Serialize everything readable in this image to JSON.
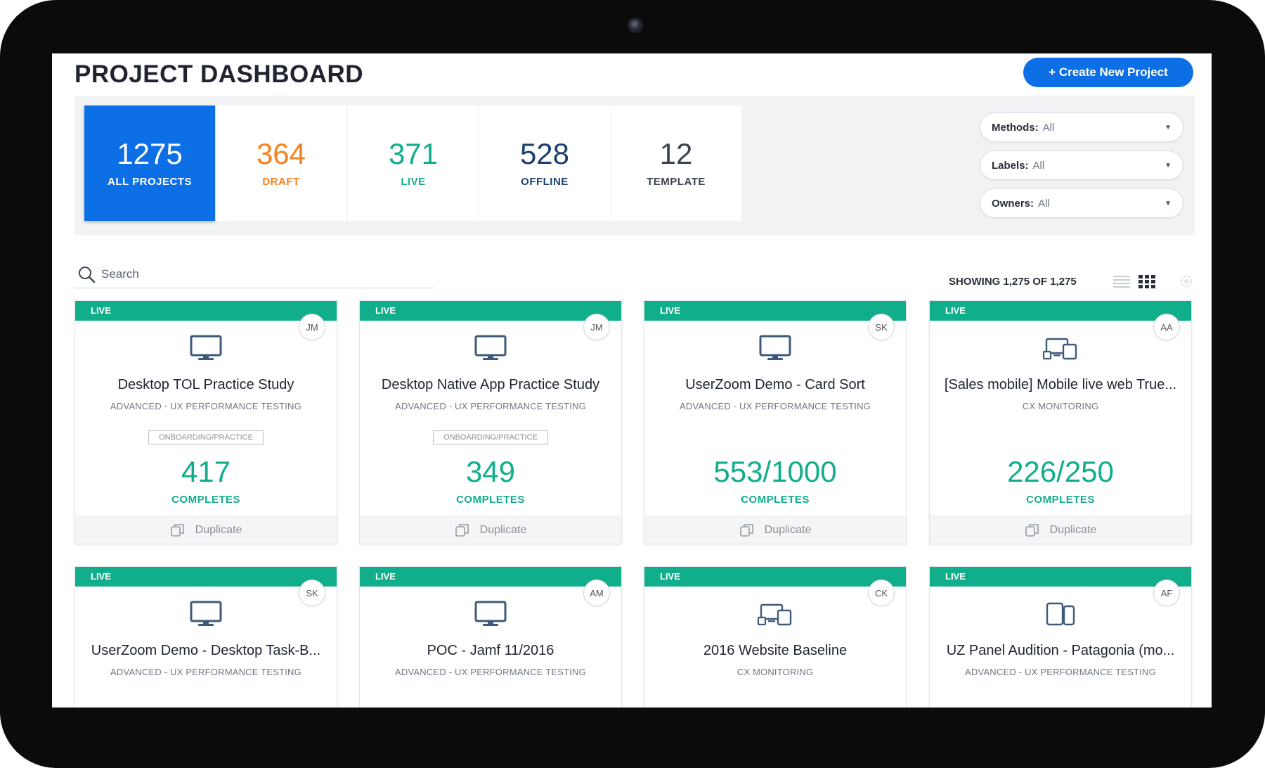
{
  "header": {
    "title": "PROJECT DASHBOARD",
    "create_button": "+ Create New Project"
  },
  "stats": [
    {
      "value": "1275",
      "label": "ALL PROJECTS",
      "color": "#ffffff",
      "active": true
    },
    {
      "value": "364",
      "label": "DRAFT",
      "color": "#f58220"
    },
    {
      "value": "371",
      "label": "LIVE",
      "color": "#11ae8b"
    },
    {
      "value": "528",
      "label": "OFFLINE",
      "color": "#1c3f6e"
    },
    {
      "value": "12",
      "label": "TEMPLATE",
      "color": "#3d4450"
    }
  ],
  "filters": [
    {
      "label": "Methods:",
      "value": "All"
    },
    {
      "label": "Labels:",
      "value": "All"
    },
    {
      "label": "Owners:",
      "value": "All"
    }
  ],
  "search": {
    "placeholder": "Search"
  },
  "results": {
    "showing": "SHOWING 1,275 OF 1,275"
  },
  "view_icons": [
    "list-view-icon",
    "grid-view-icon",
    "settings-icon"
  ],
  "colors": {
    "accent": "#0d6fe6",
    "live": "#11ae8b",
    "draft": "#f58220"
  },
  "projects": [
    {
      "status": "LIVE",
      "owner": "JM",
      "device": "desktop-icon",
      "title": "Desktop TOL Practice Study",
      "type": "ADVANCED - UX PERFORMANCE TESTING",
      "tag": "ONBOARDING/PRACTICE",
      "count": "417",
      "completes": "COMPLETES",
      "action": "Duplicate"
    },
    {
      "status": "LIVE",
      "owner": "JM",
      "device": "desktop-icon",
      "title": "Desktop Native App Practice Study",
      "type": "ADVANCED - UX PERFORMANCE TESTING",
      "tag": "ONBOARDING/PRACTICE",
      "count": "349",
      "completes": "COMPLETES",
      "action": "Duplicate"
    },
    {
      "status": "LIVE",
      "owner": "SK",
      "device": "desktop-icon",
      "title": "UserZoom Demo - Card Sort",
      "type": "ADVANCED - UX PERFORMANCE TESTING",
      "count": "553/1000",
      "completes": "COMPLETES",
      "action": "Duplicate"
    },
    {
      "status": "LIVE",
      "owner": "AA",
      "device": "multi-device-icon",
      "title": "[Sales mobile] Mobile live web True...",
      "type": "CX MONITORING",
      "count": "226/250",
      "completes": "COMPLETES",
      "action": "Duplicate"
    },
    {
      "status": "LIVE",
      "owner": "SK",
      "device": "desktop-icon",
      "title": "UserZoom Demo - Desktop Task-B...",
      "type": "ADVANCED - UX PERFORMANCE TESTING"
    },
    {
      "status": "LIVE",
      "owner": "AM",
      "device": "desktop-icon",
      "title": "POC - Jamf 11/2016",
      "type": "ADVANCED - UX PERFORMANCE TESTING"
    },
    {
      "status": "LIVE",
      "owner": "CK",
      "device": "multi-device-icon",
      "title": "2016 Website Baseline",
      "type": "CX MONITORING"
    },
    {
      "status": "LIVE",
      "owner": "AF",
      "device": "tablet-phone-icon",
      "title": "UZ Panel Audition - Patagonia (mo...",
      "type": "ADVANCED - UX PERFORMANCE TESTING"
    }
  ]
}
